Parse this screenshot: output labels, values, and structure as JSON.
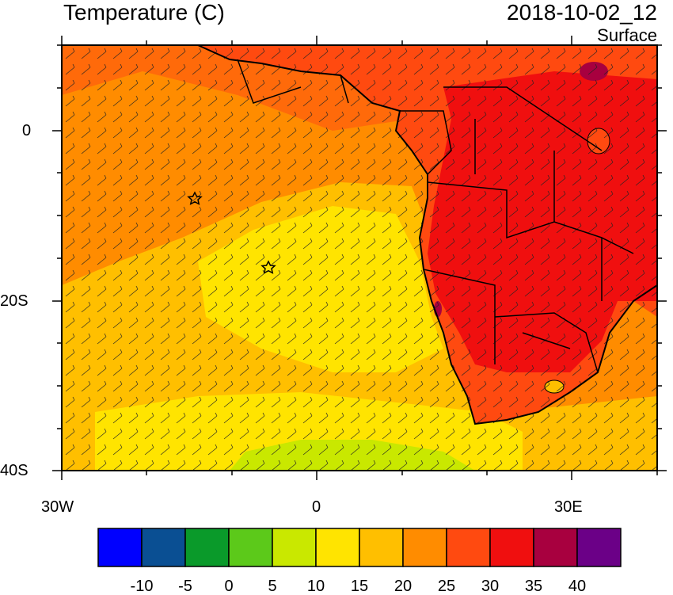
{
  "header": {
    "field_title": "Temperature (C)",
    "valid_time": "2018-10-02_12",
    "level": "Surface"
  },
  "axes": {
    "y_labels": [
      "0",
      "20S",
      "40S"
    ],
    "x_labels": [
      "30W",
      "0",
      "30E"
    ]
  },
  "colorbar": {
    "labels": [
      "-10",
      "-5",
      "0",
      "5",
      "10",
      "15",
      "20",
      "25",
      "30",
      "35",
      "40"
    ],
    "colors": [
      "#0000ff",
      "#0a4f93",
      "#0a9a2a",
      "#5cc91a",
      "#c9e800",
      "#ffe400",
      "#ffbf00",
      "#ff8c00",
      "#ff4a10",
      "#f00f0f",
      "#a8003f",
      "#6b0087"
    ]
  },
  "markers": [
    "star-marker",
    "star-marker"
  ],
  "colors": {
    "ocean_warm": "#ff8c00",
    "ocean_mid": "#ffbf00",
    "ocean_cool": "#ffe400",
    "ocean_cold": "#c9e800",
    "land_hot": "#f00f0f",
    "land_warm": "#ff4a10"
  }
}
